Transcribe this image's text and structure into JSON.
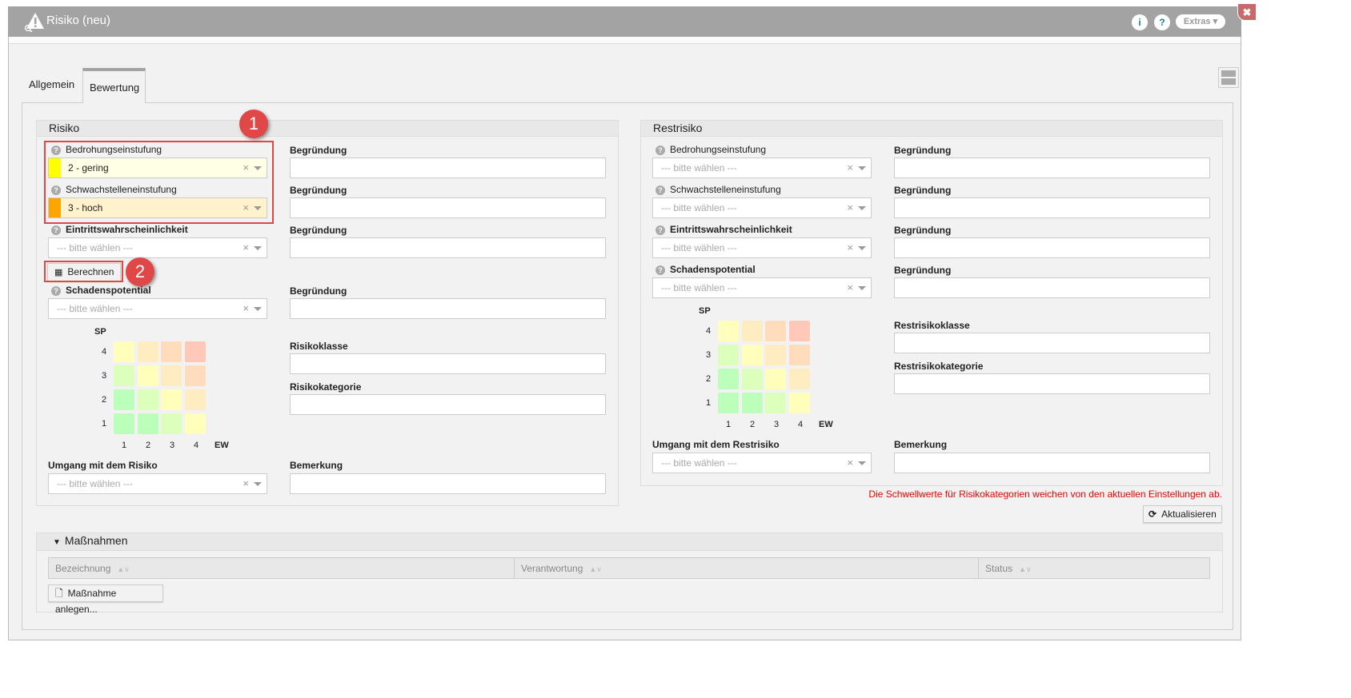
{
  "window": {
    "title": "Risiko (neu)",
    "info_icon": "i",
    "help_icon": "?",
    "extras": "Extras ▾",
    "close": "✖"
  },
  "tabs": [
    {
      "label": "Allgemein"
    },
    {
      "label": "Bewertung"
    }
  ],
  "risiko": {
    "title": "Risiko",
    "bedrohung": {
      "label": "Bedrohungseinstufung",
      "value": "2 - gering",
      "color": "#ffff00"
    },
    "schwachstelle": {
      "label": "Schwachstelleneinstufung",
      "value": "3 - hoch",
      "color": "#ffa500"
    },
    "eintritt": {
      "label": "Eintrittswahrscheinlichkeit",
      "placeholder": "--- bitte wählen ---"
    },
    "berechnen": "Berechnen",
    "schaden": {
      "label": "Schadenspotential",
      "placeholder": "--- bitte wählen ---"
    },
    "begruendung": "Begründung",
    "risikoklasse": "Risikoklasse",
    "risikokategorie": "Risikokategorie",
    "umgang": {
      "label": "Umgang mit dem Risiko",
      "placeholder": "--- bitte wählen ---"
    },
    "bemerkung": "Bemerkung"
  },
  "restrisiko": {
    "title": "Restrisiko",
    "bedrohung": {
      "label": "Bedrohungseinstufung",
      "placeholder": "--- bitte wählen ---"
    },
    "schwachstelle": {
      "label": "Schwachstelleneinstufung",
      "placeholder": "--- bitte wählen ---"
    },
    "eintritt": {
      "label": "Eintrittswahrscheinlichkeit",
      "placeholder": "--- bitte wählen ---"
    },
    "schaden": {
      "label": "Schadenspotential",
      "placeholder": "--- bitte wählen ---"
    },
    "begruendung": "Begründung",
    "klasse": "Restrisikoklasse",
    "kategorie": "Restrisikokategorie",
    "umgang": {
      "label": "Umgang mit dem Restrisiko",
      "placeholder": "--- bitte wählen ---"
    },
    "bemerkung": "Bemerkung",
    "warning": "Die Schwellwerte für Risikokategorien weichen von den aktuellen Einstellungen ab.",
    "aktualisieren": "Aktualisieren"
  },
  "matrix": {
    "y_label": "SP",
    "x_label": "EW",
    "ticks": [
      "1",
      "2",
      "3",
      "4"
    ],
    "rows_top_down": [
      [
        "#ffffbb",
        "#ffecc0",
        "#ffdcbb",
        "#ffc8b8"
      ],
      [
        "#dcffbb",
        "#ffffbb",
        "#ffecc0",
        "#ffdcbb"
      ],
      [
        "#bbffbb",
        "#dcffbb",
        "#ffffbb",
        "#ffecc0"
      ],
      [
        "#bbffbb",
        "#bbffbb",
        "#dcffbb",
        "#ffffbb"
      ]
    ]
  },
  "massnahmen": {
    "title": "Maßnahmen",
    "columns": [
      "Bezeichnung",
      "Verantwortung",
      "Status"
    ],
    "sort_icon": "▲∨",
    "add": "Maßnahme anlegen..."
  },
  "annotations": [
    "1",
    "2"
  ]
}
